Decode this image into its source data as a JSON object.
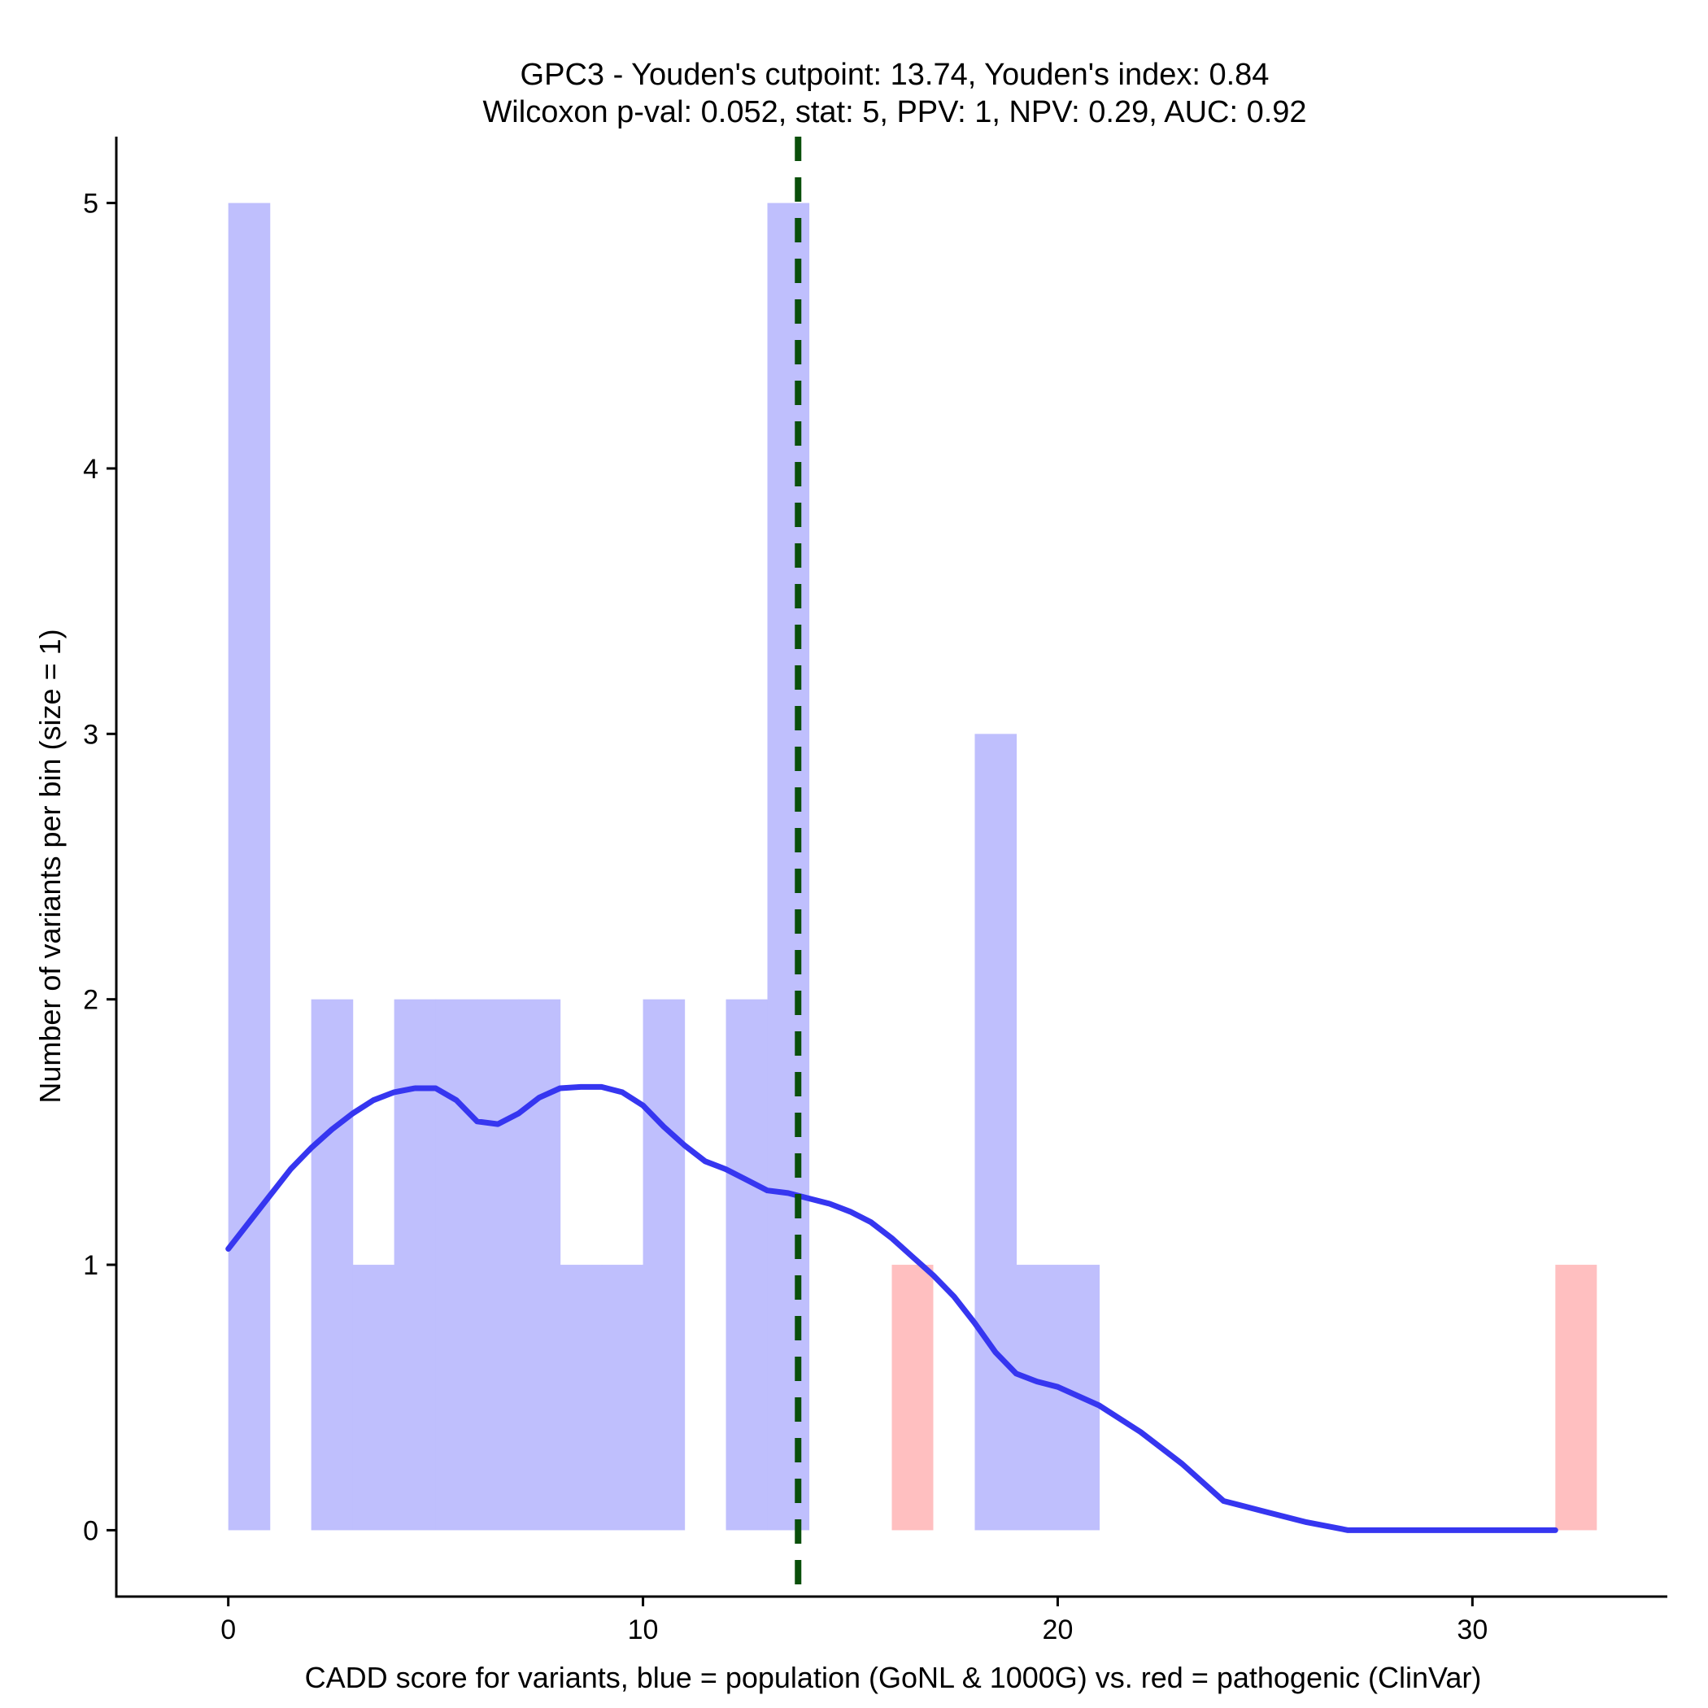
{
  "chart_data": {
    "type": "bar",
    "title": "GPC3 - Youden's cutpoint: 13.74, Youden's index: 0.84",
    "subtitle": "Wilcoxon p-val: 0.052, stat: 5, PPV: 1, NPV: 0.29, AUC: 0.92",
    "xlabel": "CADD score for variants, blue = population (GoNL & 1000G) vs. red = pathogenic (ClinVar)",
    "ylabel": "Number of variants per bin (size = 1)",
    "xlim": [
      -2.7,
      34.7
    ],
    "ylim": [
      -0.25,
      5.25
    ],
    "x_ticks": [
      0,
      10,
      20,
      30
    ],
    "y_ticks": [
      0,
      1,
      2,
      3,
      4,
      5
    ],
    "bin_size": 1,
    "cutpoint": 13.74,
    "colors": {
      "population": "#bfbffd",
      "pathogenic": "#ffbfc0",
      "density": "#3636f0",
      "cutpoint": "#0a4f0a"
    },
    "population_bins": [
      {
        "start": 0,
        "count": 5
      },
      {
        "start": 2,
        "count": 2
      },
      {
        "start": 3,
        "count": 1
      },
      {
        "start": 4,
        "count": 2
      },
      {
        "start": 5,
        "count": 2
      },
      {
        "start": 6,
        "count": 2
      },
      {
        "start": 7,
        "count": 2
      },
      {
        "start": 8,
        "count": 1
      },
      {
        "start": 9,
        "count": 1
      },
      {
        "start": 10,
        "count": 2
      },
      {
        "start": 12,
        "count": 2
      },
      {
        "start": 13,
        "count": 5
      },
      {
        "start": 18,
        "count": 3
      },
      {
        "start": 19,
        "count": 1
      },
      {
        "start": 20,
        "count": 1
      }
    ],
    "pathogenic_bins": [
      {
        "start": 16,
        "count": 1
      },
      {
        "start": 32,
        "count": 1
      }
    ],
    "density_curve": {
      "x": [
        0,
        0.5,
        1,
        1.5,
        2,
        2.5,
        3,
        3.5,
        4,
        4.5,
        5,
        5.5,
        6,
        6.5,
        7,
        7.5,
        8,
        8.5,
        9,
        9.5,
        10,
        10.5,
        11,
        11.5,
        12,
        12.5,
        13,
        13.5,
        14,
        14.5,
        15,
        15.5,
        16,
        16.5,
        17,
        17.5,
        18,
        18.5,
        19,
        19.5,
        20,
        21,
        22,
        23,
        24,
        24.5,
        25,
        26,
        27,
        28,
        29,
        30,
        31,
        32
      ],
      "y": [
        1.06,
        1.16,
        1.26,
        1.36,
        1.44,
        1.51,
        1.57,
        1.62,
        1.65,
        1.665,
        1.665,
        1.62,
        1.54,
        1.53,
        1.57,
        1.63,
        1.665,
        1.67,
        1.67,
        1.65,
        1.6,
        1.52,
        1.45,
        1.39,
        1.36,
        1.32,
        1.28,
        1.27,
        1.25,
        1.23,
        1.2,
        1.16,
        1.1,
        1.03,
        0.96,
        0.88,
        0.78,
        0.67,
        0.59,
        0.56,
        0.54,
        0.47,
        0.37,
        0.25,
        0.11,
        0.09,
        0.07,
        0.03,
        0.0,
        0.0,
        0.0,
        0.0,
        0.0,
        0.0
      ]
    }
  }
}
